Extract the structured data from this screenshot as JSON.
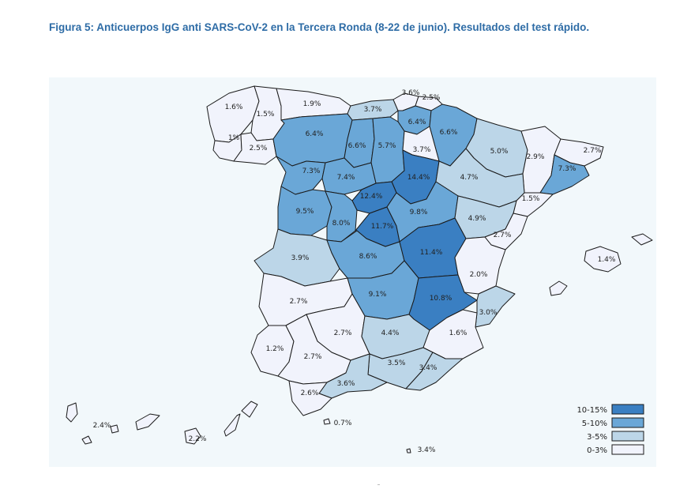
{
  "title": "Figura 5: Anticuerpos IgG anti SARS-CoV-2 en la Tercera Ronda (8-22 de junio). Resultados del test rápido.",
  "colors": {
    "c1": "#3a7fc2",
    "c2": "#6aa7d7",
    "c3": "#bcd6e8",
    "c4": "#f1f3fc",
    "background": "#f2f8fb"
  },
  "legend": [
    {
      "label": "10-15%",
      "color": "#3a7fc2"
    },
    {
      "label": "5-10%",
      "color": "#6aa7d7"
    },
    {
      "label": "3-5%",
      "color": "#bcd6e8"
    },
    {
      "label": "0-3%",
      "color": "#f1f3fc"
    }
  ],
  "provinces": [
    {
      "id": "a-coruna",
      "value": "1.6%"
    },
    {
      "id": "lugo",
      "value": "1.5%"
    },
    {
      "id": "pontevedra",
      "value": "1%"
    },
    {
      "id": "ourense",
      "value": "2.5%"
    },
    {
      "id": "asturias",
      "value": "1.9%"
    },
    {
      "id": "cantabria",
      "value": "3.7%"
    },
    {
      "id": "bizkaia",
      "value": "3.6%"
    },
    {
      "id": "gipuzkoa",
      "value": "2.5%"
    },
    {
      "id": "araba",
      "value": "6.4%"
    },
    {
      "id": "navarra",
      "value": "6.6%"
    },
    {
      "id": "leon",
      "value": "6.4%"
    },
    {
      "id": "palencia",
      "value": "6.6%"
    },
    {
      "id": "burgos",
      "value": "5.7%"
    },
    {
      "id": "la-rioja",
      "value": "3.7%"
    },
    {
      "id": "huesca",
      "value": "5.0%"
    },
    {
      "id": "lleida",
      "value": "2.9%"
    },
    {
      "id": "girona",
      "value": "2.7%"
    },
    {
      "id": "barcelona",
      "value": "7.3%"
    },
    {
      "id": "zamora",
      "value": "7.3%"
    },
    {
      "id": "valladolid",
      "value": "7.4%"
    },
    {
      "id": "soria",
      "value": "14.4%"
    },
    {
      "id": "zaragoza",
      "value": "4.7%"
    },
    {
      "id": "tarragona",
      "value": "1.5%"
    },
    {
      "id": "segovia",
      "value": "12.4%"
    },
    {
      "id": "salamanca",
      "value": "9.5%"
    },
    {
      "id": "avila",
      "value": "8.0%"
    },
    {
      "id": "madrid",
      "value": "11.7%"
    },
    {
      "id": "guadalajara",
      "value": "9.8%"
    },
    {
      "id": "teruel",
      "value": "4.9%"
    },
    {
      "id": "castellon",
      "value": "2.7%"
    },
    {
      "id": "caceres",
      "value": "3.9%"
    },
    {
      "id": "toledo",
      "value": "8.6%"
    },
    {
      "id": "cuenca",
      "value": "11.4%"
    },
    {
      "id": "valencia",
      "value": "2.0%"
    },
    {
      "id": "badajoz",
      "value": "2.7%"
    },
    {
      "id": "ciudad-real",
      "value": "9.1%"
    },
    {
      "id": "albacete",
      "value": "10.8%"
    },
    {
      "id": "alicante",
      "value": "3.0%"
    },
    {
      "id": "huelva",
      "value": "1.2%"
    },
    {
      "id": "cordoba",
      "value": "2.7%"
    },
    {
      "id": "jaen",
      "value": "4.4%"
    },
    {
      "id": "murcia",
      "value": "1.6%"
    },
    {
      "id": "sevilla",
      "value": "2.7%"
    },
    {
      "id": "granada",
      "value": "3.5%"
    },
    {
      "id": "almeria",
      "value": "3.4%"
    },
    {
      "id": "malaga",
      "value": "3.6%"
    },
    {
      "id": "cadiz",
      "value": "2.6%"
    },
    {
      "id": "baleares",
      "value": "1.4%"
    },
    {
      "id": "ceuta",
      "value": "0.7%"
    },
    {
      "id": "melilla",
      "value": "3.4%"
    },
    {
      "id": "las-palmas",
      "value": "2.2%"
    },
    {
      "id": "santa-cruz",
      "value": "2.4%"
    }
  ]
}
